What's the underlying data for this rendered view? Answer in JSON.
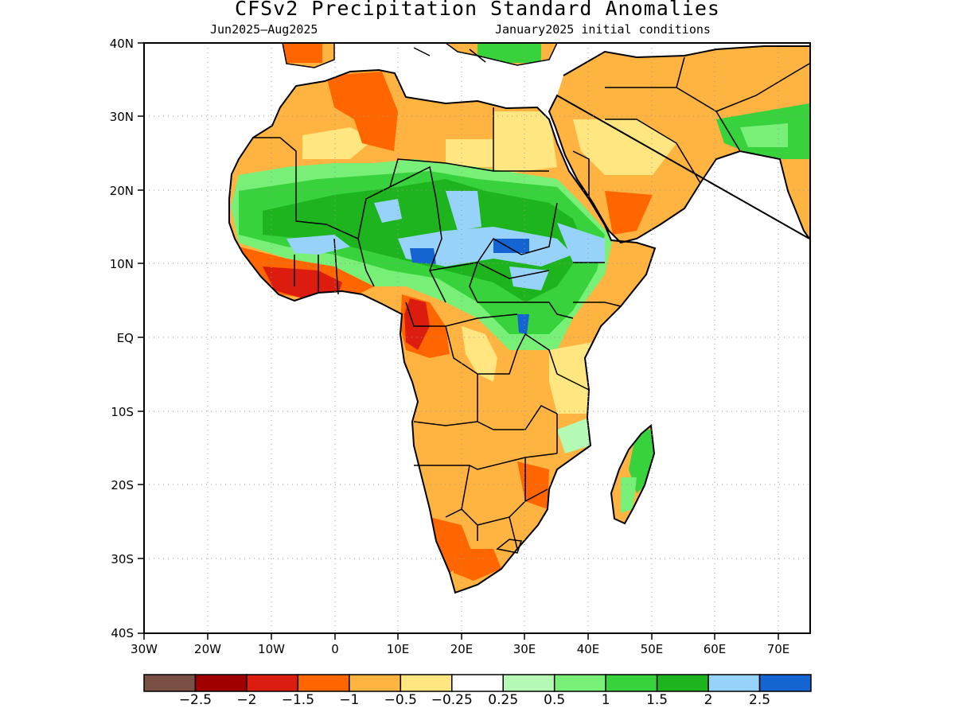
{
  "title": "CFSv2 Precipitation Standard Anomalies",
  "subtitle_left": "Jun2025–Aug2025",
  "subtitle_right": "January2025 initial conditions",
  "map": {
    "lon_range": [
      -30,
      75
    ],
    "lat_range": [
      -40,
      40
    ],
    "lat_labels": [
      "40N",
      "30N",
      "20N",
      "10N",
      "EQ",
      "10S",
      "20S",
      "30S",
      "40S"
    ],
    "lon_labels": [
      "30W",
      "20W",
      "10W",
      "0",
      "10E",
      "20E",
      "30E",
      "40E",
      "50E",
      "60E",
      "70E"
    ]
  },
  "colorbar": {
    "colors": [
      "#7a5045",
      "#a00000",
      "#dd1c10",
      "#ff6600",
      "#ffb340",
      "#ffe680",
      "#ffffff",
      "#b4fab4",
      "#78f078",
      "#37d23c",
      "#1eb41e",
      "#96d2fa",
      "#1464d2"
    ],
    "labels": [
      "−2.5",
      "−2",
      "−1.5",
      "−1",
      "−0.5",
      "−0.25",
      "0.25",
      "0.5",
      "1",
      "1.5",
      "2",
      "2.5"
    ]
  },
  "regions": [
    {
      "name": "Mediterranean north Africa coast",
      "anomaly_class": "-0.5 to -1"
    },
    {
      "name": "Sahara / Libya / Egypt",
      "anomaly_class": "-0.25 to -1"
    },
    {
      "name": "Sahel belt",
      "anomaly_class": "0.5 to 2"
    },
    {
      "name": "Lake Chad / Sudan core",
      "anomaly_class": "2 to 2.5+"
    },
    {
      "name": "Gulf of Guinea coast",
      "anomaly_class": "-1 to -2"
    },
    {
      "name": "Cameroon / Gabon",
      "anomaly_class": "-1 to -1.5"
    },
    {
      "name": "Southern Africa",
      "anomaly_class": "-0.25 to -1"
    },
    {
      "name": "Madagascar east coast",
      "anomaly_class": "0.5 to 1.5"
    },
    {
      "name": "Arabian Peninsula",
      "anomaly_class": "-0.25 to -1"
    }
  ]
}
